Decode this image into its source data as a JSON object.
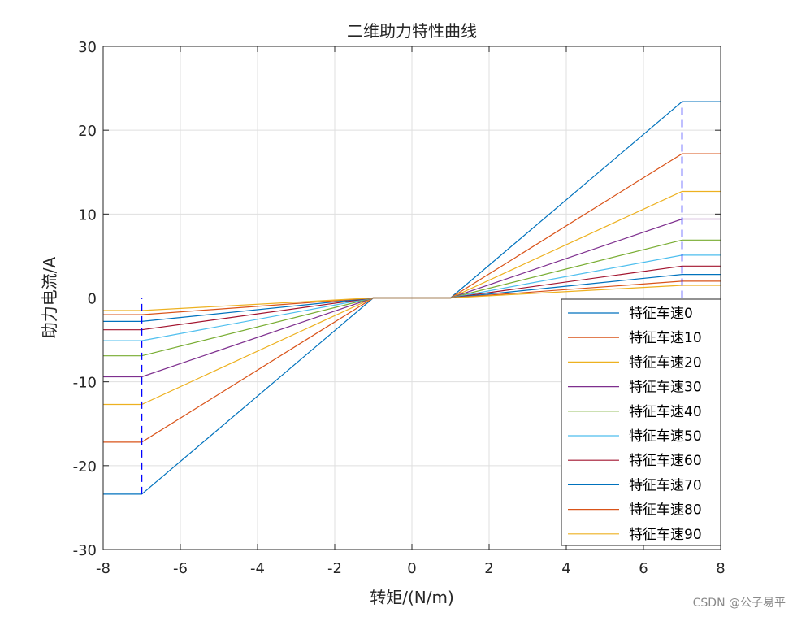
{
  "watermark": "CSDN @公子易平",
  "chart_data": {
    "type": "line",
    "title": "二维助力特性曲线",
    "xlabel": "转矩/(N/m)",
    "ylabel": "助力电流/A",
    "xlim": [
      -8,
      8
    ],
    "ylim": [
      -30,
      30
    ],
    "xticks": [
      -8,
      -6,
      -4,
      -2,
      0,
      2,
      4,
      6,
      8
    ],
    "yticks": [
      -30,
      -20,
      -10,
      0,
      10,
      20,
      30
    ],
    "grid": true,
    "legend_position": "bottom-right",
    "x": [
      -8,
      -7,
      -1,
      1,
      7,
      8
    ],
    "series": [
      {
        "name": "特征车速0",
        "color": "#0072BD",
        "values": [
          -23.4,
          -23.4,
          0,
          0,
          23.4,
          23.4
        ]
      },
      {
        "name": "特征车速10",
        "color": "#D95319",
        "values": [
          -17.2,
          -17.2,
          0,
          0,
          17.2,
          17.2
        ]
      },
      {
        "name": "特征车速20",
        "color": "#EDB120",
        "values": [
          -12.7,
          -12.7,
          0,
          0,
          12.7,
          12.7
        ]
      },
      {
        "name": "特征车速30",
        "color": "#7E2F8E",
        "values": [
          -9.4,
          -9.4,
          0,
          0,
          9.4,
          9.4
        ]
      },
      {
        "name": "特征车速40",
        "color": "#77AC30",
        "values": [
          -6.9,
          -6.9,
          0,
          0,
          6.9,
          6.9
        ]
      },
      {
        "name": "特征车速50",
        "color": "#4DBEEE",
        "values": [
          -5.1,
          -5.1,
          0,
          0,
          5.1,
          5.1
        ]
      },
      {
        "name": "特征车速60",
        "color": "#A2142F",
        "values": [
          -3.8,
          -3.8,
          0,
          0,
          3.8,
          3.8
        ]
      },
      {
        "name": "特征车速70",
        "color": "#0072BD",
        "values": [
          -2.8,
          -2.8,
          0,
          0,
          2.8,
          2.8
        ]
      },
      {
        "name": "特征车速80",
        "color": "#D95319",
        "values": [
          -2.0,
          -2.0,
          0,
          0,
          2.0,
          2.0
        ]
      },
      {
        "name": "特征车速90",
        "color": "#EDB120",
        "values": [
          -1.5,
          -1.5,
          0,
          0,
          1.5,
          1.5
        ]
      }
    ],
    "reference_lines": [
      {
        "x": -7,
        "y_range": [
          -23.4,
          0
        ],
        "color": "#0000FF",
        "style": "dashed"
      },
      {
        "x": 7,
        "y_range": [
          0,
          23.4
        ],
        "color": "#0000FF",
        "style": "dashed"
      }
    ]
  }
}
